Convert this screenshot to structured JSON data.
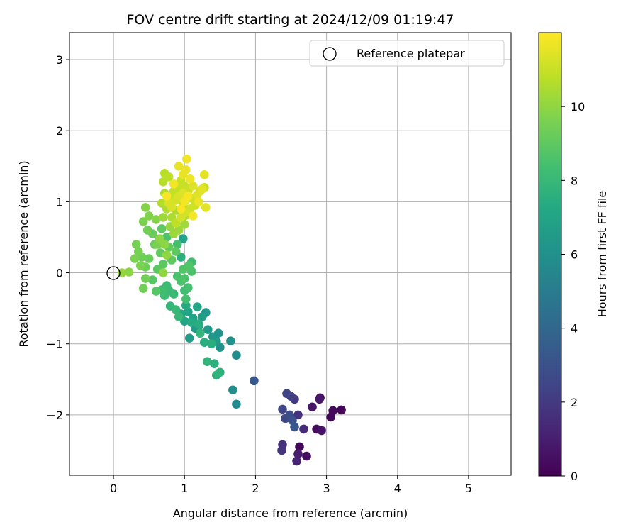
{
  "chart_data": {
    "type": "scatter",
    "title": "FOV centre drift starting at 2024/12/09 01:19:47",
    "xlabel": "Angular distance from reference (arcmin)",
    "ylabel": "Rotation from reference (arcmin)",
    "xlim": [
      -0.62,
      5.6
    ],
    "ylim": [
      -2.85,
      3.38
    ],
    "xticks": [
      0,
      1,
      2,
      3,
      4,
      5
    ],
    "yticks": [
      -2,
      -1,
      0,
      1,
      2,
      3
    ],
    "grid": true,
    "legend": {
      "placement": "top-right",
      "entries": [
        "Reference platepar"
      ]
    },
    "reference_point": {
      "x": 0,
      "y": 0,
      "marker": "open-circle",
      "label": "Reference platepar"
    },
    "colorbar": {
      "label": "Hours from first FF file",
      "colormap": "viridis",
      "min": 0,
      "max": 12,
      "ticks": [
        0,
        2,
        4,
        6,
        8,
        10
      ]
    },
    "points_columns": [
      "x",
      "y",
      "hours"
    ],
    "points": [
      [
        2.62,
        -2.45,
        0.2
      ],
      [
        2.72,
        -2.58,
        0.4
      ],
      [
        2.6,
        -2.55,
        0.9
      ],
      [
        2.58,
        -2.65,
        1.2
      ],
      [
        2.38,
        -2.42,
        1.6
      ],
      [
        2.37,
        -2.5,
        1.8
      ],
      [
        2.86,
        -2.2,
        0.3
      ],
      [
        2.93,
        -2.22,
        0.6
      ],
      [
        2.9,
        -1.78,
        0.8
      ],
      [
        2.91,
        -1.76,
        0.5
      ],
      [
        3.06,
        -2.03,
        0.2
      ],
      [
        3.09,
        -1.94,
        0.3
      ],
      [
        3.21,
        -1.93,
        0.1
      ],
      [
        2.8,
        -1.89,
        0.7
      ],
      [
        2.68,
        -2.2,
        1.5
      ],
      [
        2.6,
        -2.0,
        1.7
      ],
      [
        2.55,
        -1.78,
        2.0
      ],
      [
        2.5,
        -1.74,
        2.2
      ],
      [
        2.44,
        -1.7,
        2.4
      ],
      [
        2.38,
        -1.92,
        2.5
      ],
      [
        2.42,
        -2.05,
        2.6
      ],
      [
        2.48,
        -2.0,
        2.8
      ],
      [
        2.52,
        -2.08,
        3.0
      ],
      [
        2.55,
        -2.17,
        3.2
      ],
      [
        1.98,
        -1.52,
        3.3
      ],
      [
        1.73,
        -1.85,
        5.7
      ],
      [
        1.68,
        -1.65,
        5.8
      ],
      [
        1.73,
        -1.16,
        5.9
      ],
      [
        1.65,
        -0.96,
        6.0
      ],
      [
        1.5,
        -1.05,
        6.1
      ],
      [
        1.48,
        -0.85,
        6.2
      ],
      [
        1.4,
        -0.9,
        6.3
      ],
      [
        1.3,
        -0.56,
        6.3
      ],
      [
        1.45,
        -0.97,
        6.4
      ],
      [
        1.33,
        -0.8,
        6.5
      ],
      [
        1.15,
        -0.78,
        6.5
      ],
      [
        1.07,
        -0.92,
        6.6
      ],
      [
        1.25,
        -0.62,
        6.7
      ],
      [
        1.2,
        -0.75,
        6.8
      ],
      [
        1.12,
        -0.64,
        6.9
      ],
      [
        1.18,
        -0.48,
        7.0
      ],
      [
        1.05,
        -0.55,
        7.0
      ],
      [
        1.0,
        -0.68,
        7.1
      ],
      [
        0.95,
        -0.58,
        7.2
      ],
      [
        1.02,
        -0.46,
        7.3
      ],
      [
        1.1,
        -0.7,
        7.3
      ],
      [
        1.2,
        -0.72,
        7.4
      ],
      [
        1.28,
        -0.98,
        7.5
      ],
      [
        1.38,
        -1.0,
        7.5
      ],
      [
        1.42,
        -1.28,
        7.6
      ],
      [
        1.5,
        -1.4,
        7.7
      ],
      [
        1.45,
        -1.44,
        7.7
      ],
      [
        1.32,
        -1.25,
        7.8
      ],
      [
        1.22,
        -0.85,
        7.8
      ],
      [
        0.8,
        -0.47,
        7.9
      ],
      [
        0.88,
        -0.52,
        8.0
      ],
      [
        0.92,
        -0.62,
        8.0
      ],
      [
        0.85,
        -0.3,
        8.1
      ],
      [
        0.78,
        -0.25,
        8.1
      ],
      [
        0.72,
        -0.32,
        8.2
      ],
      [
        0.75,
        -0.18,
        8.2
      ],
      [
        0.68,
        -0.24,
        8.3
      ],
      [
        1.0,
        -0.25,
        8.3
      ],
      [
        1.02,
        -0.37,
        8.4
      ],
      [
        1.05,
        -0.21,
        8.4
      ],
      [
        0.95,
        -0.12,
        8.5
      ],
      [
        0.9,
        -0.05,
        8.5
      ],
      [
        1.0,
        -0.08,
        8.6
      ],
      [
        1.1,
        0.02,
        8.6
      ],
      [
        1.06,
        0.1,
        8.7
      ],
      [
        0.98,
        0.05,
        8.7
      ],
      [
        0.6,
        -0.26,
        8.8
      ],
      [
        0.55,
        -0.1,
        8.8
      ],
      [
        0.62,
        0.05,
        8.9
      ],
      [
        0.7,
        0.12,
        8.9
      ],
      [
        0.82,
        0.18,
        9.0
      ],
      [
        0.88,
        0.3,
        9.0
      ],
      [
        0.78,
        0.36,
        9.1
      ],
      [
        0.66,
        0.28,
        9.1
      ],
      [
        0.58,
        0.4,
        9.2
      ],
      [
        0.5,
        0.2,
        9.2
      ],
      [
        0.45,
        0.08,
        9.3
      ],
      [
        0.4,
        0.22,
        9.3
      ],
      [
        0.45,
        -0.08,
        9.4
      ],
      [
        0.42,
        -0.22,
        9.4
      ],
      [
        0.35,
        0.3,
        9.5
      ],
      [
        0.32,
        0.4,
        9.5
      ],
      [
        0.38,
        0.1,
        9.6
      ],
      [
        0.3,
        0.2,
        9.6
      ],
      [
        0.98,
        0.48,
        6.9
      ],
      [
        1.1,
        0.15,
        8.3
      ],
      [
        0.95,
        0.22,
        7.6
      ],
      [
        0.9,
        0.4,
        8.4
      ],
      [
        0.75,
        0.5,
        8.6
      ],
      [
        0.68,
        0.62,
        9.0
      ],
      [
        0.55,
        0.55,
        9.2
      ],
      [
        0.48,
        0.6,
        9.4
      ],
      [
        0.42,
        0.72,
        9.6
      ],
      [
        0.5,
        0.8,
        9.7
      ],
      [
        0.45,
        0.92,
        9.8
      ],
      [
        0.6,
        0.75,
        9.8
      ],
      [
        0.65,
        0.48,
        9.9
      ],
      [
        0.72,
        0.4,
        9.9
      ],
      [
        0.75,
        0.25,
        10.0
      ],
      [
        0.7,
        0.0,
        10.0
      ],
      [
        0.22,
        0.01,
        9.9
      ],
      [
        0.12,
        0.0,
        10.1
      ],
      [
        0.8,
        0.65,
        10.1
      ],
      [
        0.85,
        0.55,
        10.2
      ],
      [
        0.92,
        0.6,
        10.2
      ],
      [
        1.0,
        0.68,
        10.3
      ],
      [
        1.05,
        0.82,
        10.3
      ],
      [
        0.98,
        0.95,
        10.4
      ],
      [
        0.88,
        0.88,
        10.4
      ],
      [
        0.82,
        0.78,
        10.5
      ],
      [
        0.75,
        0.9,
        10.5
      ],
      [
        0.68,
        0.98,
        10.6
      ],
      [
        0.72,
        1.12,
        10.6
      ],
      [
        0.7,
        1.28,
        10.7
      ],
      [
        0.72,
        1.4,
        10.7
      ],
      [
        0.78,
        1.35,
        10.8
      ],
      [
        0.8,
        1.05,
        10.8
      ],
      [
        0.85,
        1.15,
        10.9
      ],
      [
        0.9,
        1.2,
        10.9
      ],
      [
        0.95,
        1.3,
        11.0
      ],
      [
        1.0,
        1.22,
        11.0
      ],
      [
        1.05,
        1.15,
        11.0
      ],
      [
        1.1,
        1.05,
        11.1
      ],
      [
        1.15,
        0.95,
        11.1
      ],
      [
        1.08,
        0.9,
        11.1
      ],
      [
        1.02,
        0.85,
        11.2
      ],
      [
        0.95,
        0.78,
        11.2
      ],
      [
        0.88,
        1.02,
        11.2
      ],
      [
        0.82,
        0.92,
        11.3
      ],
      [
        0.78,
        0.98,
        11.3
      ],
      [
        0.92,
        1.08,
        11.3
      ],
      [
        0.98,
        1.12,
        11.4
      ],
      [
        1.12,
        1.22,
        11.4
      ],
      [
        1.18,
        1.1,
        11.4
      ],
      [
        1.25,
        1.18,
        11.5
      ],
      [
        1.28,
        1.38,
        11.5
      ],
      [
        1.3,
        0.92,
        11.5
      ],
      [
        1.02,
        1.45,
        11.6
      ],
      [
        0.92,
        1.5,
        11.6
      ],
      [
        0.98,
        1.38,
        11.6
      ],
      [
        1.03,
        1.6,
        11.7
      ],
      [
        1.08,
        1.32,
        11.7
      ],
      [
        1.2,
        1.0,
        11.7
      ],
      [
        1.12,
        0.8,
        11.8
      ],
      [
        1.0,
        1.0,
        11.8
      ],
      [
        0.85,
        1.25,
        11.8
      ],
      [
        0.75,
        1.08,
        11.9
      ],
      [
        0.95,
        0.9,
        11.9
      ],
      [
        1.05,
        1.08,
        11.9
      ],
      [
        0.88,
        0.7,
        10.8
      ],
      [
        0.7,
        0.78,
        10.2
      ],
      [
        0.62,
        0.4,
        9.6
      ],
      [
        1.0,
        0.8,
        10.6
      ],
      [
        1.22,
        1.15,
        11.2
      ],
      [
        1.28,
        1.2,
        11.0
      ]
    ]
  }
}
